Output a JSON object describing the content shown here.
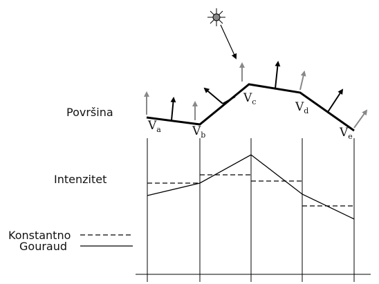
{
  "labels": {
    "surface": "Površina",
    "intensity": "Intenzitet",
    "constant": "Konstantno",
    "gouraud": "Gouraud"
  },
  "vertices": [
    {
      "letter": "V",
      "sub": "a"
    },
    {
      "letter": "V",
      "sub": "b"
    },
    {
      "letter": "V",
      "sub": "c"
    },
    {
      "letter": "V",
      "sub": "d"
    },
    {
      "letter": "V",
      "sub": "e"
    }
  ],
  "legend": {
    "constant_style": "dashed",
    "gouraud_style": "solid"
  },
  "icons": {
    "light": "sun-icon"
  },
  "colors": {
    "surface": "#000000",
    "vertex_normal": "#888888",
    "face_normal": "#000000"
  }
}
